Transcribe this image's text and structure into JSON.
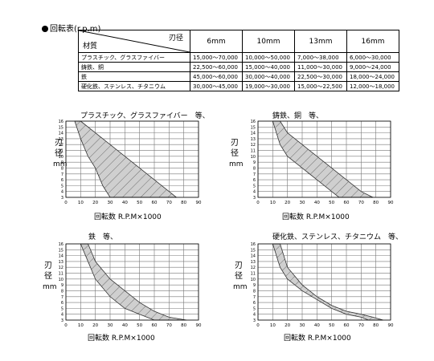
{
  "heading": "回転表(r.p.m)",
  "table": {
    "corner_top": "刃径",
    "corner_bottom": "材質",
    "columns": [
      "6mm",
      "10mm",
      "13mm",
      "16mm"
    ],
    "rows": [
      {
        "material": "プラスチック、グラスファイバー",
        "values": [
          "15,000〜70,000",
          "10,000〜50,000",
          "7,000〜38,000",
          "6,000〜30,000"
        ]
      },
      {
        "material": "鋳鉄、銅",
        "values": [
          "22,500〜60,000",
          "15,000〜40,000",
          "11,000〜30,000",
          "9,000〜24,000"
        ]
      },
      {
        "material": "鉄",
        "values": [
          "45,000〜60,000",
          "30,000〜40,000",
          "22,500〜30,000",
          "18,000〜24,000"
        ]
      },
      {
        "material": "硬化鉄、ステンレス、チタニウム",
        "values": [
          "30,000〜45,000",
          "19,000〜30,000",
          "15,000〜22,500",
          "12,000〜18,000"
        ]
      }
    ]
  },
  "charts_common": {
    "ylabel_1": "刃",
    "ylabel_2": "径",
    "ylabel_3": "mm",
    "xlabel": "回転数 R.P.M×1000",
    "x_ticks": [
      "0",
      "10",
      "20",
      "30",
      "40",
      "50",
      "60",
      "70",
      "80",
      "90"
    ],
    "y_ticks": [
      "3",
      "4",
      "5",
      "6",
      "7",
      "8",
      "9",
      "10",
      "11",
      "12",
      "13",
      "14",
      "15",
      "16"
    ]
  },
  "chart_data": [
    {
      "type": "area",
      "title": "プラスチック、グラスファイバー　等、",
      "xlabel": "回転数 R.P.M×1000",
      "ylabel": "刃径 mm",
      "xlim": [
        0,
        90
      ],
      "ylim": [
        3,
        16
      ],
      "grid": true,
      "lower_bound": {
        "x": [
          6,
          10,
          15,
          20,
          25,
          30
        ],
        "y": [
          16,
          13,
          10,
          8,
          5,
          3
        ]
      },
      "upper_bound": {
        "x": [
          10,
          20,
          30,
          40,
          50,
          60,
          70,
          75
        ],
        "y": [
          16,
          14,
          12,
          10,
          8,
          6,
          4,
          3
        ]
      }
    },
    {
      "type": "area",
      "title": "鋳鉄、銅　等、",
      "xlabel": "回転数 R.P.M×1000",
      "ylabel": "刃径 mm",
      "xlim": [
        0,
        90
      ],
      "ylim": [
        3,
        16
      ],
      "grid": true,
      "lower_bound": {
        "x": [
          10,
          15,
          20,
          30,
          40,
          50,
          55
        ],
        "y": [
          16,
          12,
          10,
          8,
          6,
          4,
          3
        ]
      },
      "upper_bound": {
        "x": [
          15,
          20,
          30,
          40,
          50,
          60,
          70,
          78
        ],
        "y": [
          16,
          14,
          12,
          10,
          8,
          6,
          4,
          3
        ]
      }
    },
    {
      "type": "area",
      "title": "鉄　等、",
      "xlabel": "回転数 R.P.M×1000",
      "ylabel": "刃径 mm",
      "xlim": [
        0,
        90
      ],
      "ylim": [
        3,
        16
      ],
      "grid": true,
      "lower_bound": {
        "x": [
          10,
          15,
          20,
          30,
          40,
          50,
          60
        ],
        "y": [
          16,
          13,
          10,
          7,
          5,
          4,
          3
        ]
      },
      "upper_bound": {
        "x": [
          15,
          20,
          30,
          40,
          50,
          60,
          70,
          82
        ],
        "y": [
          16,
          13,
          10,
          8,
          6,
          4.5,
          3.5,
          3
        ]
      }
    },
    {
      "type": "area",
      "title": "硬化鉄、ステンレス、チタニウム　等、",
      "xlabel": "回転数 R.P.M×1000",
      "ylabel": "刃径 mm",
      "xlim": [
        0,
        90
      ],
      "ylim": [
        3,
        16
      ],
      "grid": true,
      "lower_bound": {
        "x": [
          10,
          15,
          20,
          30,
          40,
          50,
          60,
          70,
          75
        ],
        "y": [
          16,
          12,
          10,
          8,
          6.5,
          5,
          4,
          3.5,
          3
        ]
      },
      "upper_bound": {
        "x": [
          15,
          20,
          30,
          40,
          50,
          60,
          70,
          78,
          85
        ],
        "y": [
          16,
          12,
          9,
          7,
          5.5,
          4.5,
          4,
          3.5,
          3
        ]
      }
    }
  ]
}
